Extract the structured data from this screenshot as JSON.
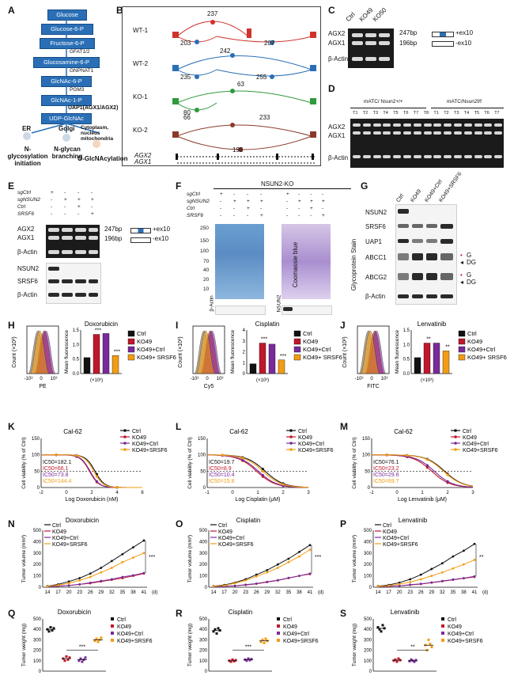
{
  "panels": {
    "A": "A",
    "B": "B",
    "C": "C",
    "D": "D",
    "E": "E",
    "F": "F",
    "G": "G",
    "H": "H",
    "I": "I",
    "J": "J",
    "K": "K",
    "L": "L",
    "M": "M",
    "N": "N",
    "O": "O",
    "P": "P",
    "Q": "Q",
    "R": "R",
    "S": "S"
  },
  "pathway": {
    "steps": [
      "Glucose",
      "Glucose-6-P",
      "Fructose-6-P",
      "Glucosamine-6-P",
      "GlcNAc-6-P",
      "GlcNAc-1-P",
      "UDP-GlcNAc"
    ],
    "enzymes": [
      "GFAT1/2",
      "GNPNAT1",
      "PGM3",
      "UAP1(AGX1/AGX2)"
    ],
    "outputs": [
      {
        "loc": "ER",
        "fn": "N-glycosylation initiation"
      },
      {
        "loc": "Golgi",
        "fn": "N-glycan branching"
      },
      {
        "loc": "Cytoplasm, nucleus mitochondria",
        "fn": "O-GlcNAcylation"
      }
    ]
  },
  "sashimi": {
    "tracks": [
      {
        "name": "WT-1",
        "top": "237",
        "left": "203",
        "right": "207"
      },
      {
        "name": "WT-2",
        "top": "242",
        "left": "235",
        "right": "255"
      },
      {
        "name": "KO-1",
        "top": "63",
        "left": "80",
        "right": ""
      },
      {
        "name": "KO-2",
        "top": "66",
        "left": "66",
        "right": "233",
        "bottom": "198"
      }
    ],
    "isoforms": [
      "AGX2",
      "AGX1"
    ]
  },
  "panelC": {
    "lanes": [
      "Ctrl",
      "KO49",
      "KO50"
    ],
    "rows": [
      "AGX2",
      "AGX1",
      "β-Actin"
    ],
    "sizes": [
      "247bp",
      "196bp"
    ],
    "iso": [
      "+ex10",
      "-ex10"
    ]
  },
  "panelD": {
    "groupA": "mATC/ Nsun2+/+",
    "groupB": "mATC/Nsun2f/f",
    "lanesA": [
      "T1",
      "T2",
      "T3",
      "T4",
      "T5",
      "T6",
      "T7",
      "T8"
    ],
    "lanesB": [
      "T1",
      "T2",
      "T3",
      "T4",
      "T5",
      "T6",
      "T7"
    ],
    "rows": [
      "AGX2",
      "AGX1",
      "β-Actin"
    ]
  },
  "panelE": {
    "rowLabels": [
      "sgCtrl",
      "sgNSUN2",
      "Ctrl",
      "SRSF6"
    ],
    "signs": [
      [
        "+",
        "-",
        "-",
        "-"
      ],
      [
        "-",
        "+",
        "+",
        "+"
      ],
      [
        "-",
        "-",
        "+",
        "-"
      ],
      [
        "-",
        "-",
        "-",
        "+"
      ]
    ],
    "blots": [
      "AGX2",
      "AGX1",
      "β-Actin",
      "NSUN2",
      "SRSF6",
      "β-Actin"
    ],
    "sizes": [
      "247bp",
      "196bp"
    ],
    "iso": [
      "+ex10",
      "-ex10"
    ]
  },
  "panelF": {
    "title": "NSUN2-KO",
    "rowLabels": [
      "sgCtrl",
      "sgNSUN2",
      "Ctrl",
      "SRSF6"
    ],
    "markers": [
      "250",
      "150",
      "100",
      "70",
      "40",
      "20",
      "10"
    ],
    "stainA": "Coomassie blue",
    "stainB": "Glycoprotein Stain",
    "bottomA": "β-Actin",
    "bottomB": "NSUN2"
  },
  "panelG": {
    "lanes": [
      "Ctrl",
      "KO49",
      "KO49+Ctrl",
      "KO49+SRSF6"
    ],
    "rows": [
      "NSUN2",
      "SRSF6",
      "UAP1",
      "ABCC1",
      "ABCG2",
      "β-Actin"
    ],
    "marks": [
      "G",
      "DG"
    ]
  },
  "flow": [
    {
      "drug": "Doxorubicin",
      "axis": "PE",
      "sig": [
        "***",
        "***"
      ]
    },
    {
      "drug": "Cisplatin",
      "axis": "Cy5",
      "sig": [
        "***",
        "***"
      ]
    },
    {
      "drug": "Lenvatinib",
      "axis": "FITC",
      "sig": [
        "**",
        "**"
      ]
    }
  ],
  "legend4": [
    "Ctrl",
    "KO49",
    "KO49+Ctrl",
    "KO49+ SRSF6"
  ],
  "legend4b": [
    "Ctrl",
    "KO49",
    "KO49+Ctrl",
    "KO49+SRSF6"
  ],
  "colors": {
    "ctrl": "#111111",
    "ko49": "#c0172b",
    "ko49ctrl": "#7a2a9a",
    "srsf6": "#f39c12"
  },
  "flowAxis": {
    "ylabel": "Count (×10²)",
    "y2": "Mean fluorescence",
    "xunit": "(×10³)",
    "xt": [
      "-10³",
      "0",
      "10³"
    ]
  },
  "chart_data": [
    {
      "type": "bar",
      "title": "Doxorubicin",
      "categories": [
        "Ctrl",
        "KO49",
        "KO49+Ctrl",
        "KO49+SRSF6"
      ],
      "values": [
        0.55,
        1.35,
        1.38,
        0.62
      ],
      "ylim": [
        0,
        1.5
      ],
      "yticks": [
        "0.0",
        "0.5",
        "1.0",
        "1.5"
      ]
    },
    {
      "type": "bar",
      "title": "Cisplatin",
      "categories": [
        "Ctrl",
        "KO49",
        "KO49+Ctrl",
        "KO49+SRSF6"
      ],
      "values": [
        0.9,
        2.8,
        2.7,
        1.25
      ],
      "ylim": [
        0,
        4
      ],
      "yticks": [
        "0",
        "1",
        "2",
        "3",
        "4"
      ]
    },
    {
      "type": "bar",
      "title": "Lenvatinib",
      "categories": [
        "Ctrl",
        "KO49",
        "KO49+Ctrl",
        "KO49+SRSF6"
      ],
      "values": [
        0.55,
        1.05,
        1.05,
        0.78
      ],
      "ylim": [
        0,
        1.5
      ],
      "yticks": [
        "0.0",
        "0.5",
        "1.0",
        "1.5"
      ]
    },
    {
      "type": "line",
      "title": "Cal-62",
      "xlabel": "Log Doxorubicin (nM)",
      "ylabel": "Cell viability (% of Ctrl)",
      "xlim": [
        -2,
        6
      ],
      "xticks": [
        "-2",
        "0",
        "2",
        "4",
        "6"
      ],
      "yticks": [
        "0",
        "50",
        "100",
        "150"
      ],
      "ic50": [
        {
          "t": "IC50=182.1",
          "c": "ctrl"
        },
        {
          "t": "IC50=66.1",
          "c": "ko49"
        },
        {
          "t": "IC50=73.8",
          "c": "ko49ctrl"
        },
        {
          "t": "IC50=144.4",
          "c": "srsf6"
        }
      ],
      "x50": [
        2.26,
        1.82,
        1.87,
        2.16
      ]
    },
    {
      "type": "line",
      "title": "Cal-62",
      "xlabel": "Log Cisplatin (μM)",
      "ylabel": "Cell viability (% of Ctrl)",
      "xlim": [
        -1,
        3
      ],
      "xticks": [
        "-1",
        "0",
        "1",
        "2",
        "3"
      ],
      "yticks": [
        "0",
        "50",
        "100",
        "150"
      ],
      "ic50": [
        {
          "t": "IC50=19.7",
          "c": "ctrl"
        },
        {
          "t": "IC50=8.9",
          "c": "ko49"
        },
        {
          "t": "IC50=10.4",
          "c": "ko49ctrl"
        },
        {
          "t": "IC50=15.8",
          "c": "srsf6"
        }
      ],
      "x50": [
        1.29,
        0.95,
        1.02,
        1.2
      ]
    },
    {
      "type": "line",
      "title": "Cal-62",
      "xlabel": "Log Lenvatinib (μM)",
      "ylabel": "Cell viability (% of Ctrl)",
      "xlim": [
        -1,
        3
      ],
      "xticks": [
        "-1",
        "0",
        "1",
        "2",
        "3"
      ],
      "yticks": [
        "0",
        "50",
        "100",
        "150"
      ],
      "ic50": [
        {
          "t": "IC50=76.1",
          "c": "ctrl"
        },
        {
          "t": "IC50=23.2",
          "c": "ko49"
        },
        {
          "t": "IC50=29.6",
          "c": "ko49ctrl"
        },
        {
          "t": "IC50=69.7",
          "c": "srsf6"
        }
      ],
      "x50": [
        1.88,
        1.37,
        1.47,
        1.84
      ]
    },
    {
      "type": "line",
      "title": "Doxorubicin",
      "ylabel": "Tumor volume (mm³)",
      "xunit": "(d)",
      "x": [
        14,
        17,
        20,
        23,
        26,
        29,
        32,
        35,
        38,
        41
      ],
      "ylim": [
        0,
        500
      ],
      "yticks": [
        "0",
        "100",
        "200",
        "300",
        "400",
        "500"
      ],
      "sig": "***",
      "series": [
        {
          "name": "Ctrl",
          "values": [
            10,
            25,
            50,
            80,
            120,
            170,
            230,
            290,
            350,
            410
          ]
        },
        {
          "name": "KO49",
          "values": [
            5,
            10,
            15,
            25,
            35,
            50,
            65,
            80,
            100,
            120
          ]
        },
        {
          "name": "KO49+Ctrl",
          "values": [
            5,
            10,
            15,
            25,
            40,
            55,
            70,
            90,
            105,
            125
          ]
        },
        {
          "name": "KO49+SRSF6",
          "values": [
            8,
            18,
            35,
            60,
            90,
            130,
            170,
            220,
            260,
            300
          ]
        }
      ]
    },
    {
      "type": "line",
      "title": "Cisplatin",
      "ylabel": "Tumor volume (mm³)",
      "xunit": "(d)",
      "x": [
        14,
        17,
        20,
        23,
        26,
        29,
        32,
        35,
        38,
        41
      ],
      "ylim": [
        0,
        500
      ],
      "yticks": [
        "0",
        "100",
        "200",
        "300",
        "400",
        "500"
      ],
      "sig": "***",
      "series": [
        {
          "name": "Ctrl",
          "values": [
            10,
            20,
            40,
            70,
            110,
            150,
            200,
            250,
            310,
            370
          ]
        },
        {
          "name": "KO49",
          "values": [
            5,
            8,
            12,
            20,
            30,
            45,
            60,
            80,
            100,
            115
          ]
        },
        {
          "name": "KO49+Ctrl",
          "values": [
            5,
            8,
            12,
            22,
            32,
            48,
            62,
            82,
            100,
            120
          ]
        },
        {
          "name": "KO49+SRSF6",
          "values": [
            8,
            15,
            35,
            60,
            95,
            130,
            170,
            220,
            270,
            330
          ]
        }
      ]
    },
    {
      "type": "line",
      "title": "Lenvatinib",
      "ylabel": "Tumor volume (mm³)",
      "xunit": "(d)",
      "x": [
        14,
        17,
        20,
        23,
        26,
        29,
        32,
        35,
        38,
        41
      ],
      "ylim": [
        0,
        500
      ],
      "yticks": [
        "0",
        "100",
        "200",
        "300",
        "400",
        "500"
      ],
      "sig": "**",
      "series": [
        {
          "name": "Ctrl",
          "values": [
            10,
            20,
            40,
            70,
            110,
            160,
            210,
            270,
            320,
            380
          ]
        },
        {
          "name": "KO49",
          "values": [
            5,
            8,
            12,
            20,
            28,
            40,
            52,
            65,
            78,
            90
          ]
        },
        {
          "name": "KO49+Ctrl",
          "values": [
            5,
            8,
            12,
            22,
            30,
            42,
            55,
            68,
            80,
            95
          ]
        },
        {
          "name": "KO49+SRSF6",
          "values": [
            8,
            14,
            28,
            45,
            70,
            100,
            130,
            165,
            200,
            240
          ]
        }
      ]
    },
    {
      "type": "scatter",
      "title": "Doxorubicin",
      "ylabel": "Tumor weight (mg)",
      "ylim": [
        0,
        500
      ],
      "yticks": [
        "0",
        "100",
        "200",
        "300",
        "400",
        "500"
      ],
      "sig": "***",
      "groups": [
        [
          400,
          380,
          420,
          390,
          410
        ],
        [
          120,
          100,
          140,
          110,
          130
        ],
        [
          100,
          120,
          90,
          110,
          130
        ],
        [
          290,
          310,
          280,
          300,
          320
        ]
      ]
    },
    {
      "type": "scatter",
      "title": "Cisplatin",
      "ylabel": "Tumor weight (mg)",
      "ylim": [
        0,
        500
      ],
      "yticks": [
        "0",
        "100",
        "200",
        "300",
        "400",
        "500"
      ],
      "sig": "***",
      "groups": [
        [
          380,
          400,
          360,
          410,
          390
        ],
        [
          100,
          90,
          110,
          95,
          105
        ],
        [
          110,
          100,
          120,
          105,
          115
        ],
        [
          280,
          300,
          270,
          310,
          290
        ]
      ]
    },
    {
      "type": "scatter",
      "title": "Lenvatinib",
      "ylabel": "Tumor weight (mg)",
      "ylim": [
        0,
        500
      ],
      "yticks": [
        "0",
        "100",
        "200",
        "300",
        "400",
        "500"
      ],
      "sig": "**",
      "groups": [
        [
          420,
          400,
          380,
          440,
          410
        ],
        [
          100,
          110,
          90,
          120,
          105
        ],
        [
          95,
          110,
          100,
          90,
          105
        ],
        [
          250,
          200,
          300,
          260,
          230
        ]
      ]
    }
  ]
}
